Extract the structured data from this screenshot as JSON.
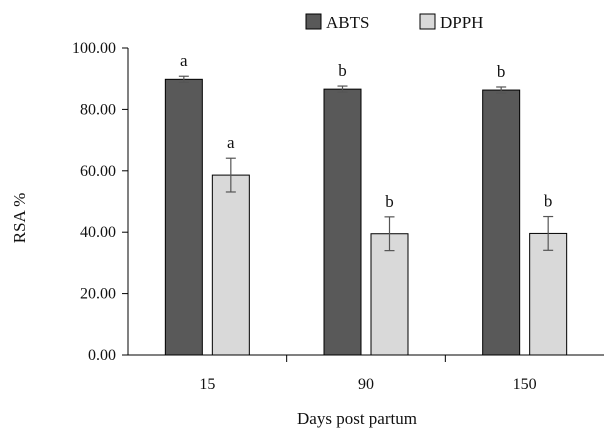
{
  "chart_data": {
    "type": "bar",
    "title": "",
    "xlabel": "Days post partum",
    "ylabel": "RSA %",
    "categories": [
      "15",
      "90",
      "150"
    ],
    "ylim": [
      0,
      100
    ],
    "yticks": [
      "0.00",
      "20.00",
      "40.00",
      "60.00",
      "80.00",
      "100.00"
    ],
    "grid": false,
    "legend_position": "top-center",
    "series": [
      {
        "name": "ABTS",
        "color": "#595959",
        "values": [
          89.8,
          86.6,
          86.3
        ],
        "errors": [
          1.0,
          1.0,
          1.0
        ],
        "labels": [
          "a",
          "b",
          "b"
        ]
      },
      {
        "name": "DPPH",
        "color": "#d9d9d9",
        "values": [
          58.6,
          39.5,
          39.6
        ],
        "errors": [
          5.5,
          5.5,
          5.5
        ],
        "labels": [
          "a",
          "b",
          "b"
        ]
      }
    ]
  }
}
